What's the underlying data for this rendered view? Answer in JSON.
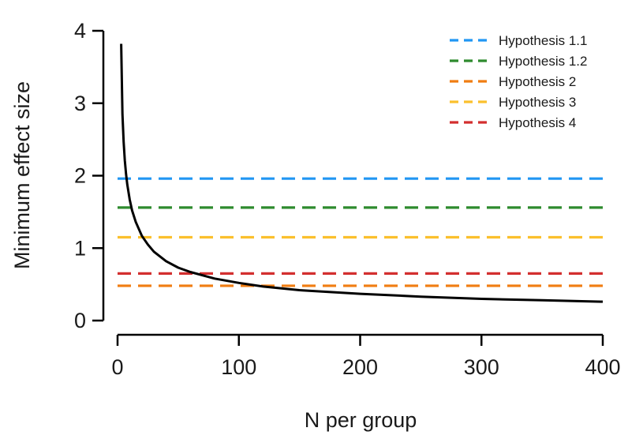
{
  "chart_data": {
    "type": "line",
    "title": "",
    "xlabel": "N per group",
    "ylabel": "Minimum effect size",
    "xlim": [
      0,
      400
    ],
    "ylim": [
      0,
      4
    ],
    "x_ticks": [
      0,
      100,
      200,
      300,
      400
    ],
    "y_ticks": [
      0,
      1,
      2,
      3,
      4
    ],
    "grid": false,
    "legend_position": "top-right",
    "curve": {
      "color": "#000000",
      "x": [
        3,
        4,
        5,
        6,
        7,
        8,
        10,
        12,
        15,
        20,
        25,
        30,
        40,
        50,
        60,
        80,
        100,
        120,
        150,
        200,
        250,
        300,
        350,
        400
      ],
      "y": [
        3.82,
        2.85,
        2.47,
        2.21,
        2.02,
        1.88,
        1.67,
        1.52,
        1.36,
        1.17,
        1.05,
        0.95,
        0.82,
        0.73,
        0.67,
        0.58,
        0.52,
        0.47,
        0.42,
        0.37,
        0.33,
        0.3,
        0.28,
        0.26
      ]
    },
    "series": [
      {
        "name": "Hypothesis 1.1",
        "value": 1.96,
        "color": "#2196f3"
      },
      {
        "name": "Hypothesis 1.2",
        "value": 1.56,
        "color": "#2e8b2e"
      },
      {
        "name": "Hypothesis 2",
        "value": 0.48,
        "color": "#f07d12"
      },
      {
        "name": "Hypothesis 3",
        "value": 1.15,
        "color": "#fbc02d"
      },
      {
        "name": "Hypothesis 4",
        "value": 0.65,
        "color": "#d32f2f"
      }
    ]
  }
}
